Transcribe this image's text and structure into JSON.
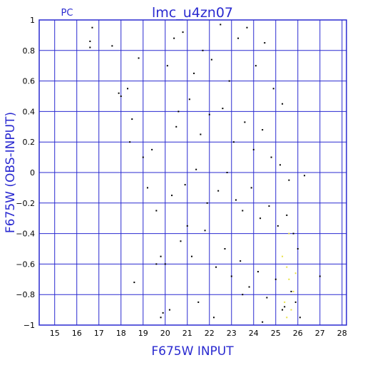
{
  "chart_data": {
    "type": "scatter",
    "title": "lmc_u4zn07",
    "subtitle": "PC",
    "xlabel": "F675W INPUT",
    "ylabel": "F675W (OBS-INPUT)",
    "xlim": [
      14.3,
      28.2
    ],
    "ylim": [
      -1,
      1
    ],
    "xticks": [
      15,
      16,
      17,
      18,
      19,
      20,
      21,
      22,
      23,
      24,
      25,
      26,
      27,
      28
    ],
    "yticks": [
      -1,
      -0.8,
      -0.6,
      -0.4,
      -0.2,
      0,
      0.2,
      0.4,
      0.6,
      0.8,
      1
    ],
    "ytick_labels": [
      "−1",
      "−0.8",
      "−0.6",
      "−0.4",
      "−0.2",
      "0",
      "0.2",
      "0.4",
      "0.6",
      "0.8",
      "1"
    ],
    "grid": true,
    "colors": {
      "frame": "#2a2ad0",
      "points": "#000000",
      "highlight": "#e8e040"
    },
    "series": [
      {
        "color": "#000000",
        "x": [
          16.6,
          16.6,
          17.6,
          18.0,
          18.3,
          18.5,
          18.8,
          19.0,
          19.4,
          19.6,
          20.6,
          21.0,
          26.3,
          27.0,
          16.7,
          20.1,
          18.4,
          19.8,
          19.8,
          20.4,
          17.9,
          19.2,
          18.6,
          19.6,
          20.2,
          20.8,
          21.3,
          21.7,
          22.1,
          22.5,
          22.9,
          23.3,
          23.7,
          24.1,
          24.5,
          24.9,
          25.3,
          20.5,
          21.1,
          21.6,
          22.0,
          22.6,
          23.1,
          23.6,
          24.0,
          24.4,
          24.8,
          25.2,
          25.6,
          20.3,
          20.9,
          21.4,
          21.9,
          22.4,
          22.8,
          23.2,
          23.5,
          23.9,
          24.3,
          24.7,
          25.1,
          25.5,
          25.8,
          26.0,
          20.7,
          21.2,
          21.8,
          22.3,
          22.7,
          23.0,
          23.4,
          23.8,
          24.2,
          24.6,
          25.0,
          25.4,
          25.7,
          19.9,
          20.0,
          21.5,
          22.2,
          23.5,
          24.4,
          25.3,
          25.9,
          26.1
        ],
        "y": [
          0.86,
          0.82,
          0.83,
          0.5,
          0.55,
          0.35,
          0.75,
          0.1,
          0.15,
          -0.25,
          0.4,
          -0.35,
          -0.02,
          -0.68,
          0.95,
          0.7,
          0.2,
          -0.55,
          -0.95,
          0.88,
          0.52,
          -0.1,
          -0.72,
          -0.6,
          -0.9,
          0.92,
          0.65,
          0.8,
          0.74,
          0.97,
          0.6,
          0.88,
          0.95,
          0.7,
          0.85,
          0.55,
          0.45,
          0.3,
          0.48,
          0.25,
          0.38,
          0.42,
          0.2,
          0.33,
          0.15,
          0.28,
          0.1,
          0.05,
          -0.05,
          -0.15,
          -0.08,
          0.02,
          -0.2,
          -0.12,
          0.0,
          -0.18,
          -0.25,
          -0.1,
          -0.3,
          -0.22,
          -0.35,
          -0.28,
          -0.4,
          -0.5,
          -0.45,
          -0.55,
          -0.38,
          -0.62,
          -0.5,
          -0.68,
          -0.58,
          -0.75,
          -0.65,
          -0.82,
          -0.7,
          -0.88,
          -0.78,
          -0.92,
          -0.6,
          -0.85,
          -0.95,
          -0.8,
          -0.98,
          -0.9,
          -0.85,
          -0.95
        ]
      },
      {
        "color": "#e8e040",
        "x": [
          25.3,
          25.5,
          25.6,
          25.8,
          25.4,
          25.7,
          25.9,
          25.5,
          25.6
        ],
        "y": [
          -0.55,
          -0.62,
          -0.7,
          -0.78,
          -0.85,
          -0.9,
          -0.66,
          -0.95,
          -0.4
        ]
      }
    ]
  }
}
